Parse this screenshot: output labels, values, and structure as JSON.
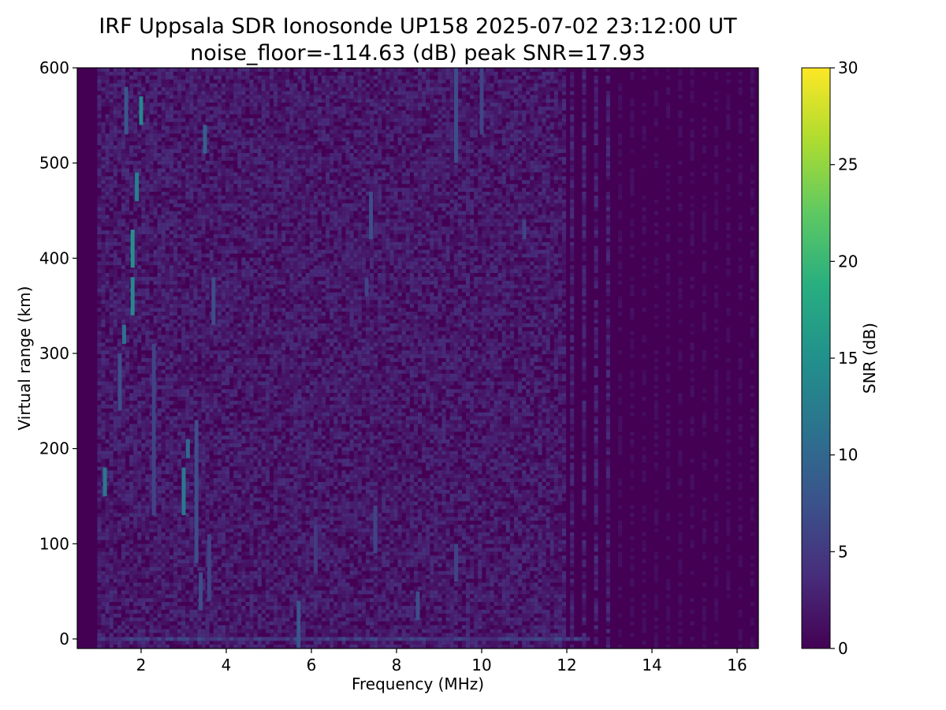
{
  "chart_data": {
    "type": "heatmap",
    "title": "IRF Uppsala SDR Ionosonde UP158 2025-07-02 23:12:00  UT",
    "subtitle": "noise_floor=-114.63 (dB) peak SNR=17.93",
    "xlabel": "Frequency (MHz)",
    "ylabel": "Virtual range (km)",
    "colorbar_label": "SNR (dB)",
    "xlim": [
      0.5,
      16.5
    ],
    "ylim": [
      -10,
      600
    ],
    "clim": [
      0,
      30
    ],
    "colormap": "viridis",
    "x_ticks": [
      2,
      4,
      6,
      8,
      10,
      12,
      14,
      16
    ],
    "y_ticks": [
      0,
      100,
      200,
      300,
      400,
      500,
      600
    ],
    "colorbar_ticks": [
      0,
      5,
      10,
      15,
      20,
      25,
      30
    ],
    "background_snr": 1.5,
    "features": [
      {
        "freq": 1.15,
        "range": [
          150,
          180
        ],
        "snr": 12
      },
      {
        "freq": 1.5,
        "range": [
          240,
          300
        ],
        "snr": 7
      },
      {
        "freq": 1.6,
        "range": [
          310,
          330
        ],
        "snr": 11
      },
      {
        "freq": 1.65,
        "range": [
          530,
          580
        ],
        "snr": 8
      },
      {
        "freq": 1.8,
        "range": [
          340,
          380
        ],
        "snr": 14
      },
      {
        "freq": 1.8,
        "range": [
          390,
          430
        ],
        "snr": 15
      },
      {
        "freq": 1.9,
        "range": [
          460,
          490
        ],
        "snr": 13
      },
      {
        "freq": 2.0,
        "range": [
          540,
          570
        ],
        "snr": 14
      },
      {
        "freq": 2.3,
        "range": [
          130,
          310
        ],
        "snr": 6
      },
      {
        "freq": 3.0,
        "range": [
          130,
          180
        ],
        "snr": 12
      },
      {
        "freq": 3.1,
        "range": [
          190,
          210
        ],
        "snr": 10
      },
      {
        "freq": 3.3,
        "range": [
          80,
          230
        ],
        "snr": 7
      },
      {
        "freq": 3.4,
        "range": [
          30,
          70
        ],
        "snr": 7
      },
      {
        "freq": 3.5,
        "range": [
          510,
          540
        ],
        "snr": 9
      },
      {
        "freq": 3.7,
        "range": [
          330,
          380
        ],
        "snr": 7
      },
      {
        "freq": 3.6,
        "range": [
          40,
          110
        ],
        "snr": 6
      },
      {
        "freq": 5.7,
        "range": [
          -10,
          40
        ],
        "snr": 8
      },
      {
        "freq": 6.1,
        "range": [
          70,
          120
        ],
        "snr": 5
      },
      {
        "freq": 7.3,
        "range": [
          360,
          380
        ],
        "snr": 6
      },
      {
        "freq": 7.4,
        "range": [
          420,
          470
        ],
        "snr": 7
      },
      {
        "freq": 7.5,
        "range": [
          90,
          140
        ],
        "snr": 6
      },
      {
        "freq": 8.5,
        "range": [
          20,
          50
        ],
        "snr": 7
      },
      {
        "freq": 9.4,
        "range": [
          60,
          100
        ],
        "snr": 6
      },
      {
        "freq": 9.4,
        "range": [
          500,
          600
        ],
        "snr": 7
      },
      {
        "freq": 10.0,
        "range": [
          530,
          600
        ],
        "snr": 6
      },
      {
        "freq": 11.0,
        "range": [
          420,
          440
        ],
        "snr": 6
      },
      {
        "freq": 3.0,
        "range": [
          -2,
          2
        ],
        "snr": 6
      }
    ]
  }
}
